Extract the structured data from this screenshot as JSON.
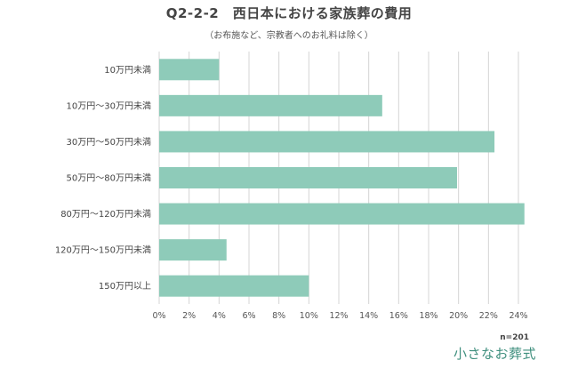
{
  "header": {
    "title": "Q2-2-2　西日本における家族葬の費用",
    "subtitle": "（お布施など、宗教者へのお礼料は除く）"
  },
  "footer": {
    "sample_size": "n=201",
    "brand": "小さなお葬式"
  },
  "colors": {
    "bar": "#8ecbb9",
    "grid": "#d4d4d4"
  },
  "chart_data": {
    "type": "bar",
    "orientation": "horizontal",
    "title": "Q2-2-2　西日本における家族葬の費用",
    "subtitle": "（お布施など、宗教者へのお礼料は除く）",
    "categories": [
      "10万円未満",
      "10万円〜30万円未満",
      "30万円〜50万円未満",
      "50万円〜80万円未満",
      "80万円〜120万円未満",
      "120万円〜150万円未満",
      "150万円以上"
    ],
    "values": [
      4.0,
      14.9,
      22.4,
      19.9,
      24.4,
      4.5,
      10.0
    ],
    "unit": "%",
    "xlim": [
      0,
      24
    ],
    "xticks": [
      0,
      2,
      4,
      6,
      8,
      10,
      12,
      14,
      16,
      18,
      20,
      22,
      24
    ],
    "xtick_labels": [
      "0%",
      "2%",
      "4%",
      "6%",
      "8%",
      "10%",
      "12%",
      "14%",
      "16%",
      "18%",
      "20%",
      "22%",
      "24%"
    ],
    "grid": true,
    "xlabel": "",
    "ylabel": ""
  }
}
